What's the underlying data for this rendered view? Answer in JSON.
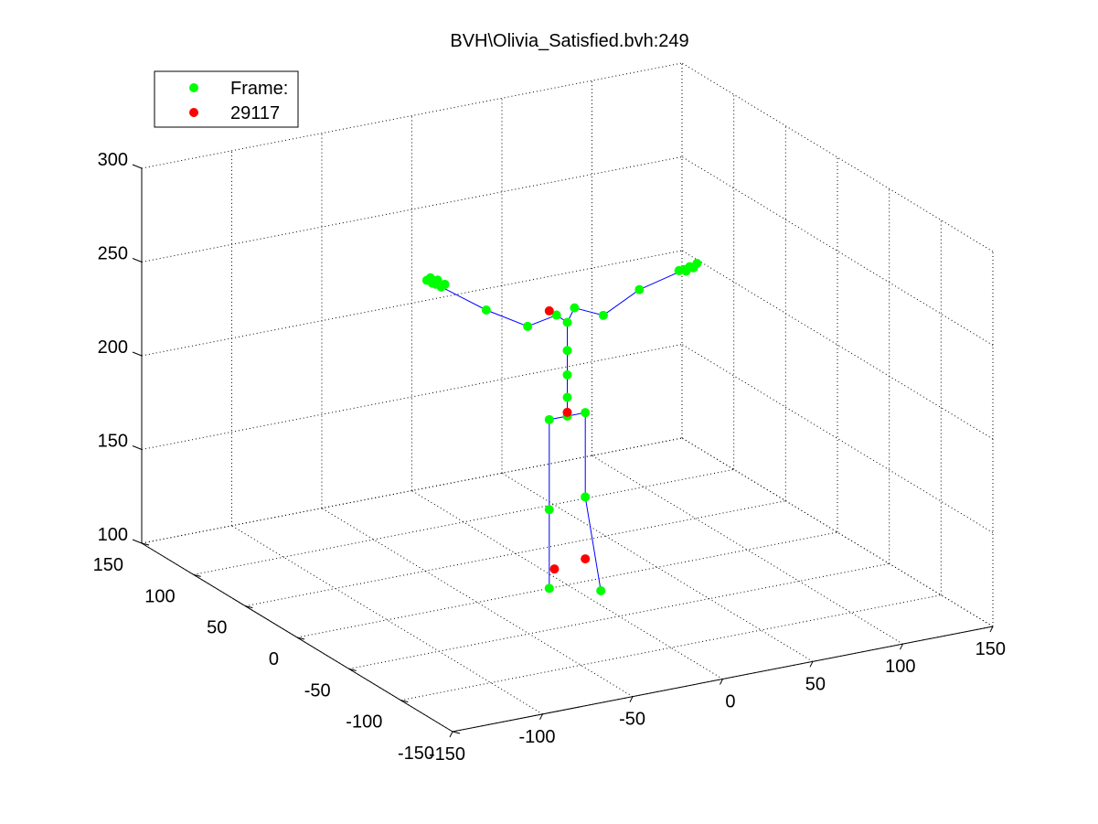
{
  "chart_data": {
    "type": "scatter",
    "title": "BVH\\Olivia_Satisfied.bvh:249",
    "legend": {
      "placement": "top-left",
      "entries": [
        {
          "label": "Frame:",
          "color": "#00ff00"
        },
        {
          "label": "29117",
          "color": "#ff0000"
        }
      ]
    },
    "axes": {
      "x_ticks": [
        "-150",
        "-100",
        "-50",
        "0",
        "50",
        "100",
        "150"
      ],
      "y_ticks": [
        "-150",
        "-100",
        "-50",
        "0",
        "50",
        "100",
        "150"
      ],
      "z_ticks": [
        "100",
        "150",
        "200",
        "250",
        "300"
      ],
      "xlim": [
        -150,
        150
      ],
      "ylim": [
        -150,
        150
      ],
      "zlim": [
        100,
        300
      ],
      "grid": true
    },
    "colors": {
      "joint": "#00ff00",
      "highlight": "#ff0000",
      "bone": "#0000ff"
    },
    "series": [
      {
        "name": "Frame:",
        "color": "#00ff00",
        "points": [
          {
            "x": 0,
            "y": 0,
            "z": 190
          },
          {
            "x": -10,
            "y": 0,
            "z": 190
          },
          {
            "x": 10,
            "y": 0,
            "z": 190
          },
          {
            "x": -10,
            "y": 0,
            "z": 142
          },
          {
            "x": -10,
            "y": 0,
            "z": 100
          },
          {
            "x": 10,
            "y": 0,
            "z": 145
          },
          {
            "x": 10,
            "y": -15,
            "z": 100
          },
          {
            "x": 0,
            "y": 0,
            "z": 200
          },
          {
            "x": 0,
            "y": 0,
            "z": 212
          },
          {
            "x": 0,
            "y": 0,
            "z": 225
          },
          {
            "x": 0,
            "y": 0,
            "z": 240
          },
          {
            "x": -6,
            "y": 0,
            "z": 245
          },
          {
            "x": 4,
            "y": 0,
            "z": 247
          },
          {
            "x": -22,
            "y": 0,
            "z": 242
          },
          {
            "x": -45,
            "y": 0,
            "z": 255
          },
          {
            "x": -70,
            "y": 0,
            "z": 272
          },
          {
            "x": -75,
            "y": 0,
            "z": 275
          },
          {
            "x": -78,
            "y": 0,
            "z": 277
          },
          {
            "x": -72,
            "y": 0,
            "z": 276
          },
          {
            "x": -73,
            "y": 0,
            "z": 274
          },
          {
            "x": -76,
            "y": 0,
            "z": 278
          },
          {
            "x": -68,
            "y": 0,
            "z": 273
          },
          {
            "x": 20,
            "y": 0,
            "z": 240
          },
          {
            "x": 40,
            "y": 0,
            "z": 250
          },
          {
            "x": 65,
            "y": 0,
            "z": 256
          },
          {
            "x": 62,
            "y": 0,
            "z": 256
          },
          {
            "x": 68,
            "y": 0,
            "z": 257
          },
          {
            "x": 70,
            "y": 0,
            "z": 256
          },
          {
            "x": 72,
            "y": 0,
            "z": 258
          },
          {
            "x": 66,
            "y": 0,
            "z": 255
          }
        ]
      },
      {
        "name": "29117",
        "color": "#ff0000",
        "points": [
          {
            "x": 0,
            "y": 0,
            "z": 192
          },
          {
            "x": -10,
            "y": 0,
            "z": 248
          },
          {
            "x": -10,
            "y": -5,
            "z": 112
          },
          {
            "x": 10,
            "y": 0,
            "z": 112
          }
        ]
      }
    ],
    "bones": [
      [
        [
          -10,
          0,
          100
        ],
        [
          -10,
          0,
          142
        ],
        [
          -10,
          0,
          190
        ],
        [
          0,
          0,
          190
        ],
        [
          10,
          0,
          190
        ],
        [
          10,
          0,
          145
        ],
        [
          10,
          -15,
          100
        ]
      ],
      [
        [
          0,
          0,
          190
        ],
        [
          0,
          0,
          200
        ],
        [
          0,
          0,
          212
        ],
        [
          0,
          0,
          225
        ],
        [
          0,
          0,
          240
        ]
      ],
      [
        [
          -70,
          0,
          272
        ],
        [
          -45,
          0,
          255
        ],
        [
          -22,
          0,
          242
        ],
        [
          -6,
          0,
          245
        ],
        [
          0,
          0,
          240
        ],
        [
          4,
          0,
          247
        ],
        [
          20,
          0,
          240
        ],
        [
          40,
          0,
          250
        ],
        [
          65,
          0,
          256
        ]
      ]
    ]
  }
}
